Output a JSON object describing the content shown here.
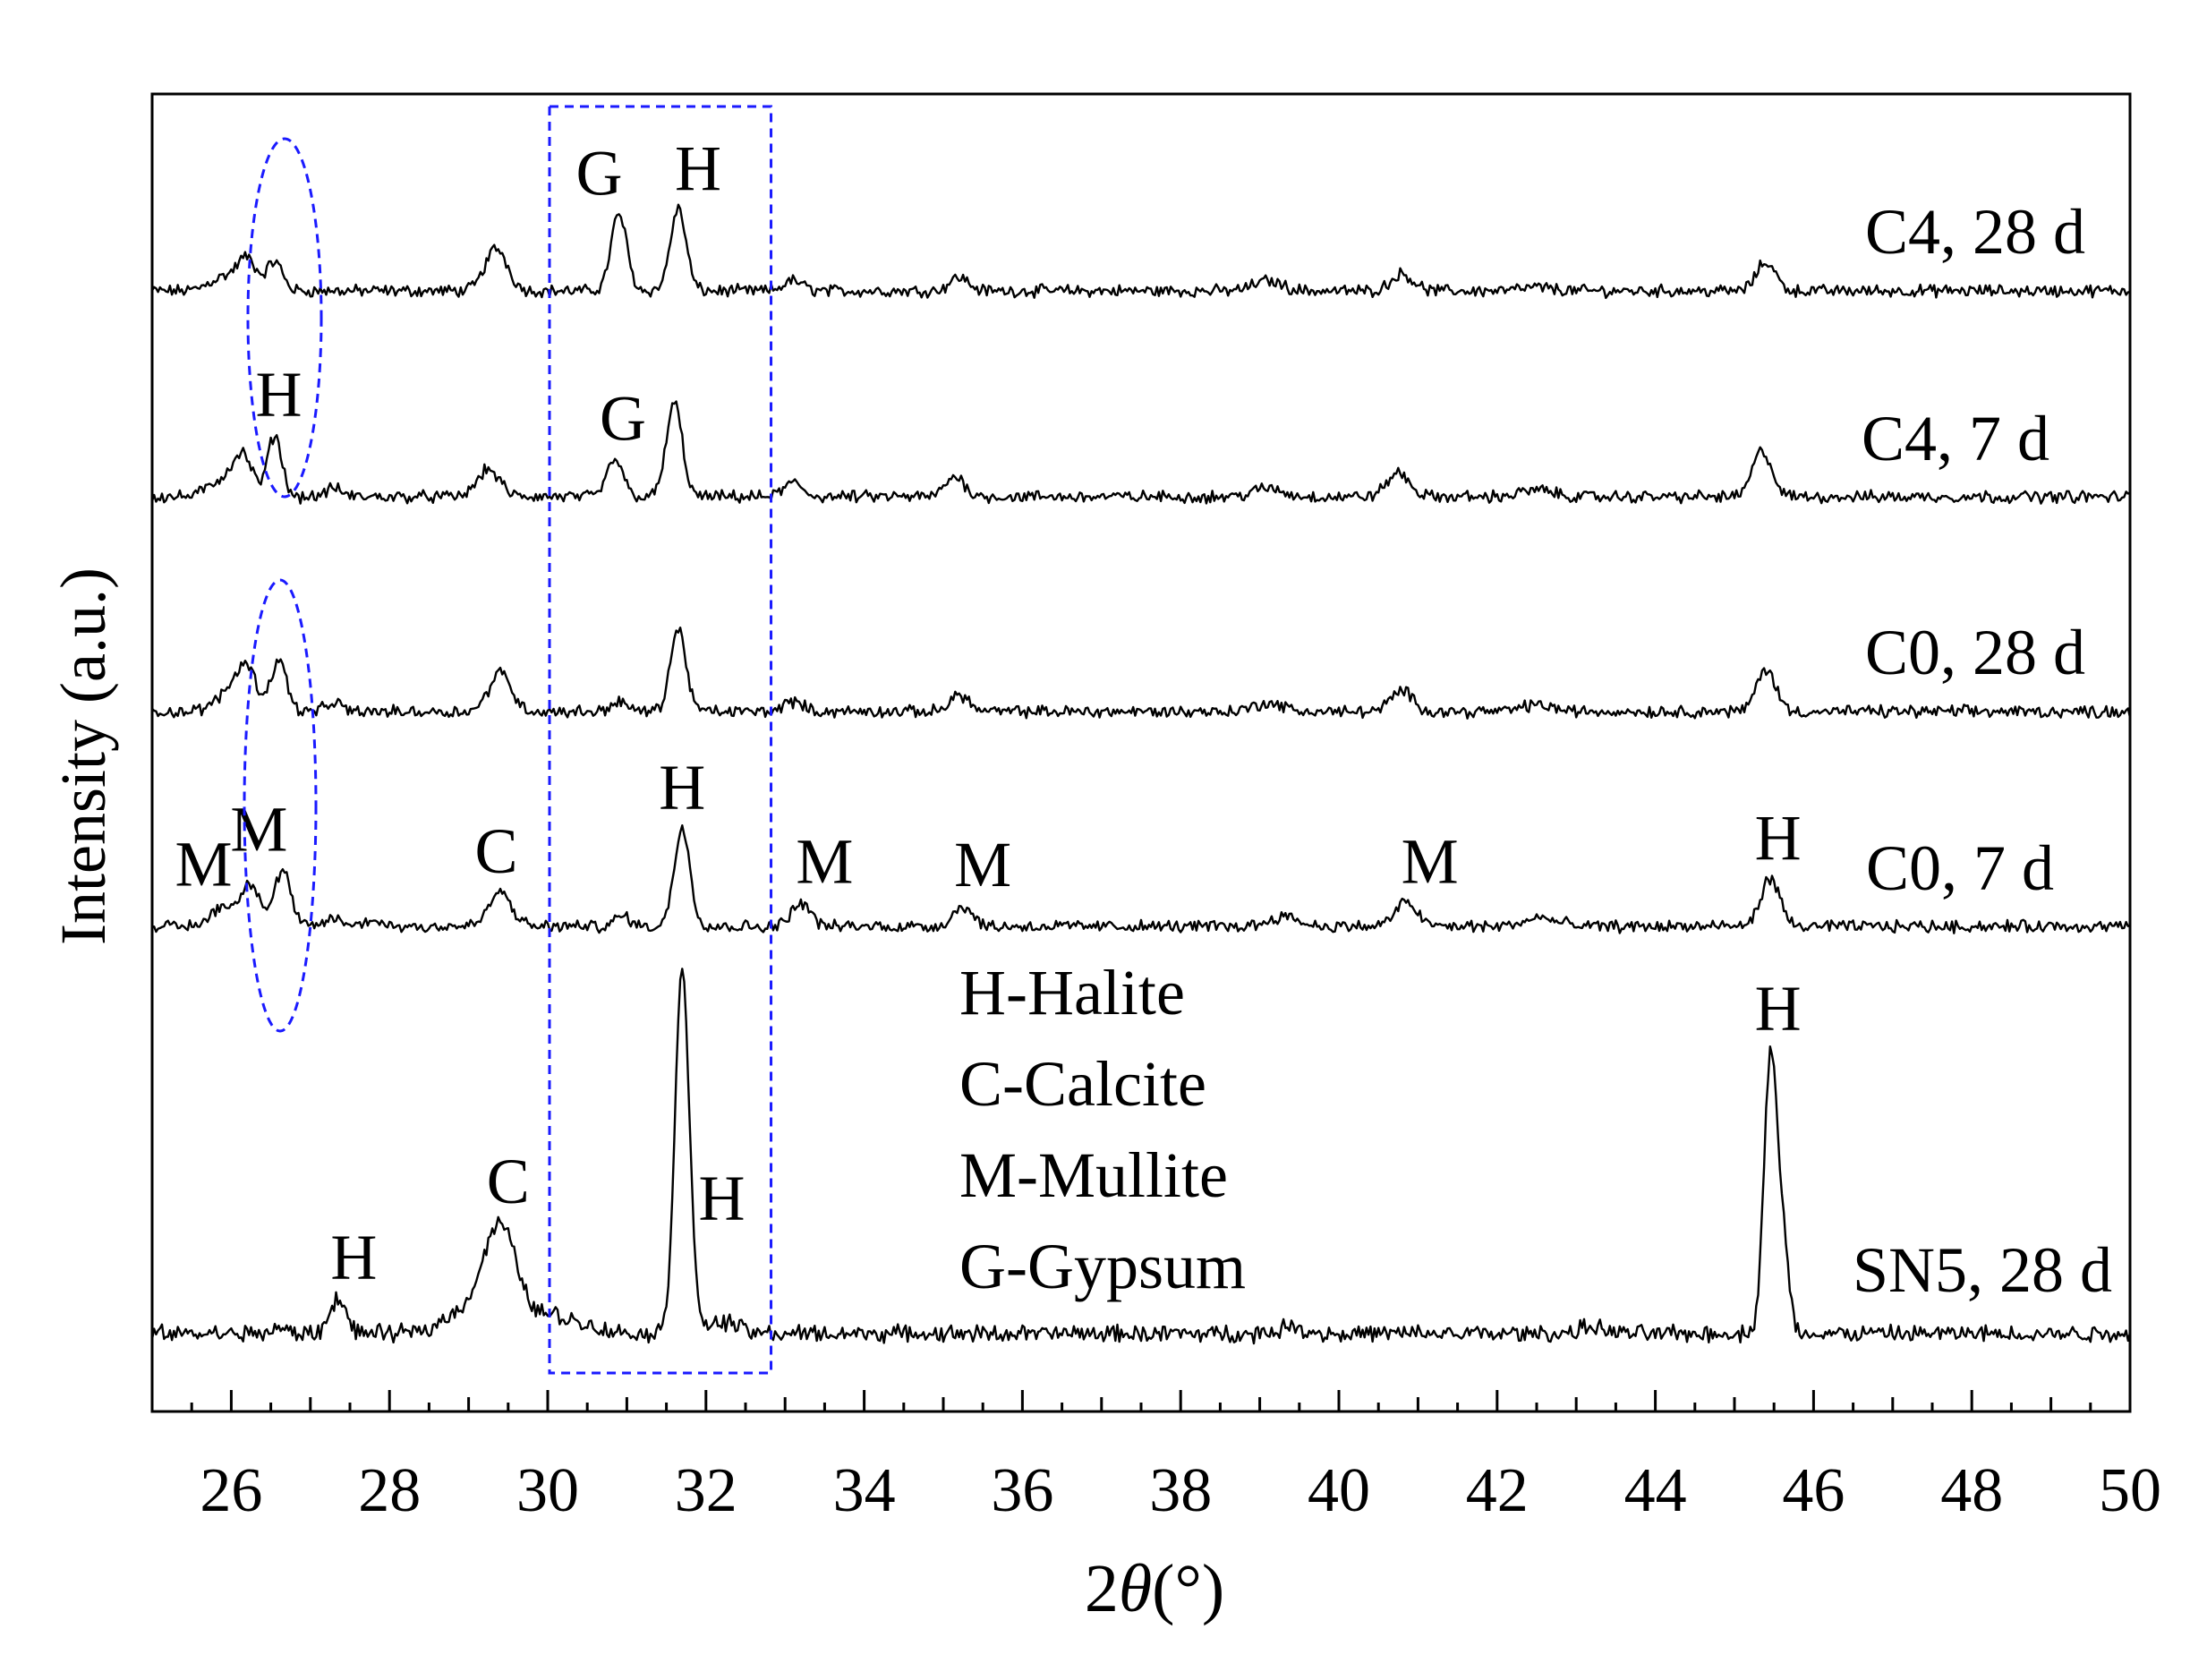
{
  "chart_data": {
    "type": "line",
    "xlabel": "2θ(°)",
    "xlabel_prefix": "2",
    "xlabel_theta": "θ",
    "xlabel_suffix": "(°)",
    "ylabel": "Intensity (a.u.)",
    "xlim": [
      25,
      50
    ],
    "x_ticks": [
      26,
      28,
      30,
      32,
      34,
      36,
      38,
      40,
      42,
      44,
      46,
      48,
      50
    ],
    "legend_lines": [
      "H-Halite",
      "C-Calcite",
      "M-Mullite",
      "G-Gypsum"
    ],
    "highlight_rect_x": [
      30,
      32.8
    ],
    "series": [
      {
        "name": "C4, 28 d",
        "baseline": 0.92,
        "peaks": [
          [
            25.9,
            0.08,
            0.18
          ],
          [
            26.2,
            0.18,
            0.12
          ],
          [
            26.55,
            0.17,
            0.1
          ],
          [
            29.35,
            0.25,
            0.14
          ],
          [
            30.9,
            0.45,
            0.1
          ],
          [
            31.65,
            0.48,
            0.1
          ],
          [
            33.1,
            0.06,
            0.12
          ],
          [
            35.2,
            0.08,
            0.12
          ],
          [
            39.1,
            0.06,
            0.18
          ],
          [
            40.8,
            0.1,
            0.14
          ],
          [
            42.5,
            0.02,
            0.2
          ],
          [
            45.4,
            0.17,
            0.12
          ]
        ]
      },
      {
        "name": "C4, 7 d",
        "baseline": 0.93,
        "peaks": [
          [
            25.9,
            0.1,
            0.18
          ],
          [
            26.15,
            0.22,
            0.12
          ],
          [
            26.55,
            0.36,
            0.09
          ],
          [
            27.3,
            0.05,
            0.1
          ],
          [
            29.25,
            0.16,
            0.14
          ],
          [
            30.85,
            0.22,
            0.1
          ],
          [
            31.6,
            0.55,
            0.1
          ],
          [
            33.1,
            0.08,
            0.12
          ],
          [
            35.15,
            0.12,
            0.12
          ],
          [
            39.1,
            0.05,
            0.18
          ],
          [
            40.75,
            0.14,
            0.14
          ],
          [
            42.5,
            0.04,
            0.2
          ],
          [
            45.35,
            0.27,
            0.12
          ]
        ]
      },
      {
        "name": "C0, 28 d",
        "baseline": 0.95,
        "peaks": [
          [
            26.0,
            0.12,
            0.18
          ],
          [
            26.2,
            0.22,
            0.12
          ],
          [
            26.6,
            0.3,
            0.1
          ],
          [
            27.3,
            0.05,
            0.1
          ],
          [
            29.4,
            0.23,
            0.14
          ],
          [
            30.9,
            0.06,
            0.1
          ],
          [
            31.65,
            0.48,
            0.1
          ],
          [
            33.1,
            0.06,
            0.12
          ],
          [
            35.2,
            0.1,
            0.12
          ],
          [
            39.1,
            0.05,
            0.18
          ],
          [
            40.8,
            0.12,
            0.14
          ],
          [
            42.5,
            0.04,
            0.2
          ],
          [
            45.4,
            0.25,
            0.12
          ]
        ]
      },
      {
        "name": "C0, 7 d",
        "baseline": 0.96,
        "peaks": [
          [
            25.9,
            0.12,
            0.15
          ],
          [
            26.25,
            0.25,
            0.12
          ],
          [
            26.65,
            0.33,
            0.1
          ],
          [
            27.3,
            0.05,
            0.1
          ],
          [
            27.8,
            0.04,
            0.1
          ],
          [
            29.4,
            0.2,
            0.14
          ],
          [
            30.95,
            0.06,
            0.1
          ],
          [
            31.7,
            0.58,
            0.1
          ],
          [
            33.2,
            0.14,
            0.12
          ],
          [
            35.25,
            0.12,
            0.12
          ],
          [
            39.3,
            0.06,
            0.18
          ],
          [
            40.85,
            0.14,
            0.14
          ],
          [
            42.55,
            0.05,
            0.2
          ],
          [
            45.45,
            0.28,
            0.12
          ]
        ]
      },
      {
        "name": "SN5, 28 d",
        "baseline": 0.97,
        "peaks": [
          [
            26.6,
            0.02,
            0.1
          ],
          [
            27.35,
            0.15,
            0.1
          ],
          [
            29.0,
            0.1,
            0.3
          ],
          [
            29.4,
            0.4,
            0.2
          ],
          [
            30.0,
            0.08,
            0.4
          ],
          [
            31.7,
            1.55,
            0.09
          ],
          [
            32.2,
            0.05,
            0.2
          ],
          [
            39.4,
            0.03,
            0.15
          ],
          [
            43.2,
            0.03,
            0.15
          ],
          [
            45.45,
            1.12,
            0.08
          ],
          [
            45.6,
            0.4,
            0.08
          ]
        ]
      }
    ],
    "peak_labels": [
      {
        "text": "G",
        "x": 30.65,
        "series": "C4, 28 d"
      },
      {
        "text": "H",
        "x": 31.9,
        "series": "C4, 28 d"
      },
      {
        "text": "H",
        "x": 26.6,
        "series": "C4, 7 d"
      },
      {
        "text": "G",
        "x": 30.95,
        "series": "C4, 7 d"
      },
      {
        "text": "M",
        "x": 25.65,
        "series": "C0, 7 d"
      },
      {
        "text": "M",
        "x": 26.35,
        "series": "C0, 7 d"
      },
      {
        "text": "C",
        "x": 29.35,
        "series": "C0, 7 d"
      },
      {
        "text": "H",
        "x": 31.7,
        "series": "C0, 7 d"
      },
      {
        "text": "M",
        "x": 33.5,
        "series": "C0, 7 d"
      },
      {
        "text": "M",
        "x": 35.5,
        "series": "C0, 7 d"
      },
      {
        "text": "M",
        "x": 41.15,
        "series": "C0, 7 d"
      },
      {
        "text": "H",
        "x": 45.55,
        "series": "C0, 7 d"
      },
      {
        "text": "H",
        "x": 32.2,
        "series": "SN5, 28 d"
      },
      {
        "text": "H",
        "x": 45.55,
        "series": "SN5, 28 d"
      },
      {
        "text": "H",
        "x": 27.55,
        "series": "SN5, 28 d"
      },
      {
        "text": "C",
        "x": 29.5,
        "series": "SN5, 28 d"
      }
    ],
    "grid": false,
    "y_ticks": false
  }
}
